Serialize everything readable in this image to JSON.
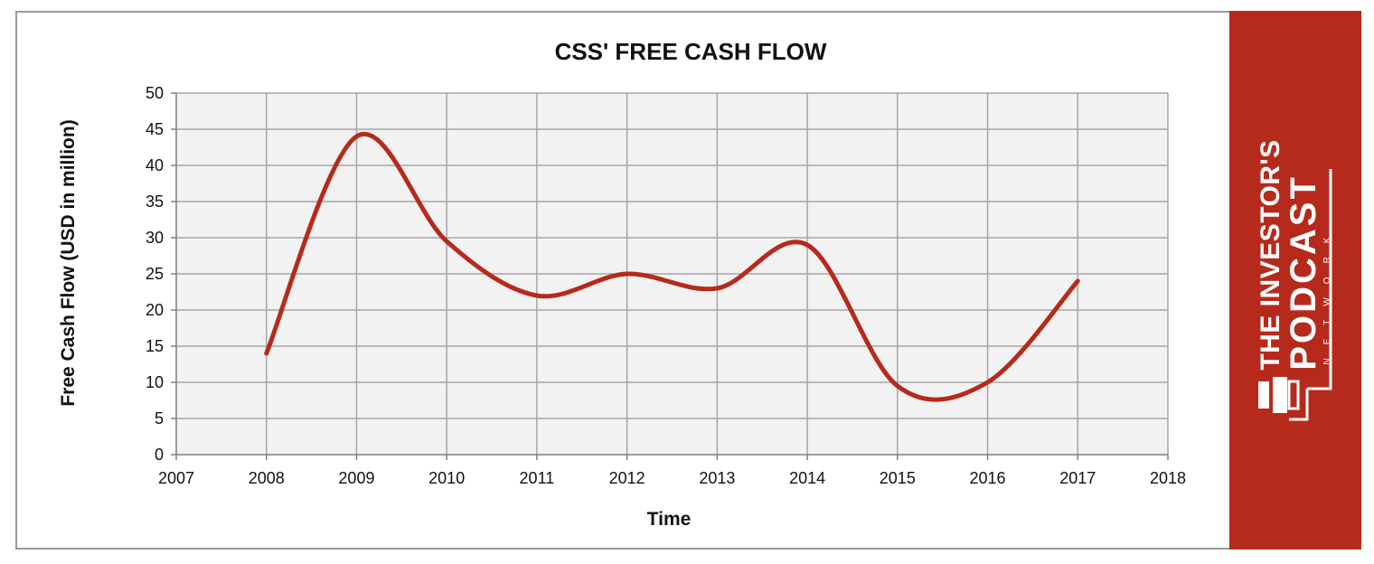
{
  "chart_data": {
    "type": "line",
    "title": "CSS' FREE CASH FLOW",
    "xlabel": "Time",
    "ylabel": "Free Cash Flow (USD in million)",
    "xlim": [
      2007,
      2018
    ],
    "ylim": [
      0,
      50
    ],
    "xticks": [
      2007,
      2008,
      2009,
      2010,
      2011,
      2012,
      2013,
      2014,
      2015,
      2016,
      2017,
      2018
    ],
    "yticks": [
      0,
      5,
      10,
      15,
      20,
      25,
      30,
      35,
      40,
      45,
      50
    ],
    "grid": true,
    "legend": "none",
    "smooth": true,
    "series": [
      {
        "x": [
          2008,
          2009,
          2010,
          2011,
          2012,
          2013,
          2014,
          2015,
          2016,
          2017
        ],
        "values": [
          14,
          44,
          29.5,
          22,
          25,
          23,
          29,
          9.5,
          10,
          24
        ]
      }
    ],
    "colors": {
      "line": "#b62a1c",
      "plot_bg": "#f2f2f2",
      "grid": "#a6a6a6"
    }
  },
  "brand": {
    "line1": "THE INVESTOR'S",
    "line2": "PODCAST",
    "line3": "NETWORK",
    "color": "#b62a1c"
  }
}
